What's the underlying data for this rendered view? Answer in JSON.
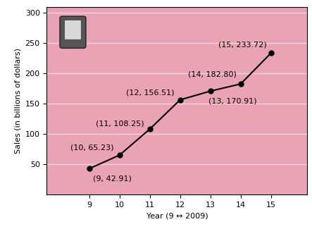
{
  "chart_data": {
    "type": "line",
    "x": [
      9,
      10,
      11,
      12,
      13,
      14,
      15
    ],
    "values": [
      42.91,
      65.23,
      108.25,
      156.51,
      170.91,
      182.8,
      233.72
    ],
    "value_labels": [
      "(9, 42.91)",
      "(10, 65.23)",
      "(11, 108.25)",
      "(12, 156.51)",
      "(13, 170.91)",
      "(14, 182.80)",
      "(15, 233.72)"
    ],
    "data_labels": true,
    "x_label": "Year (9 ↔ 2009)",
    "y_label": "Sales (in billions of dollars)",
    "xlim": [
      7.6,
      16.2
    ],
    "xticks": [
      9,
      10,
      11,
      12,
      13,
      14,
      15
    ],
    "ylim": [
      0,
      310
    ],
    "yticks": [
      50,
      100,
      150,
      200,
      250,
      300
    ],
    "color": "#000000",
    "marker": "o",
    "line_style": "solid",
    "grid": true
  }
}
